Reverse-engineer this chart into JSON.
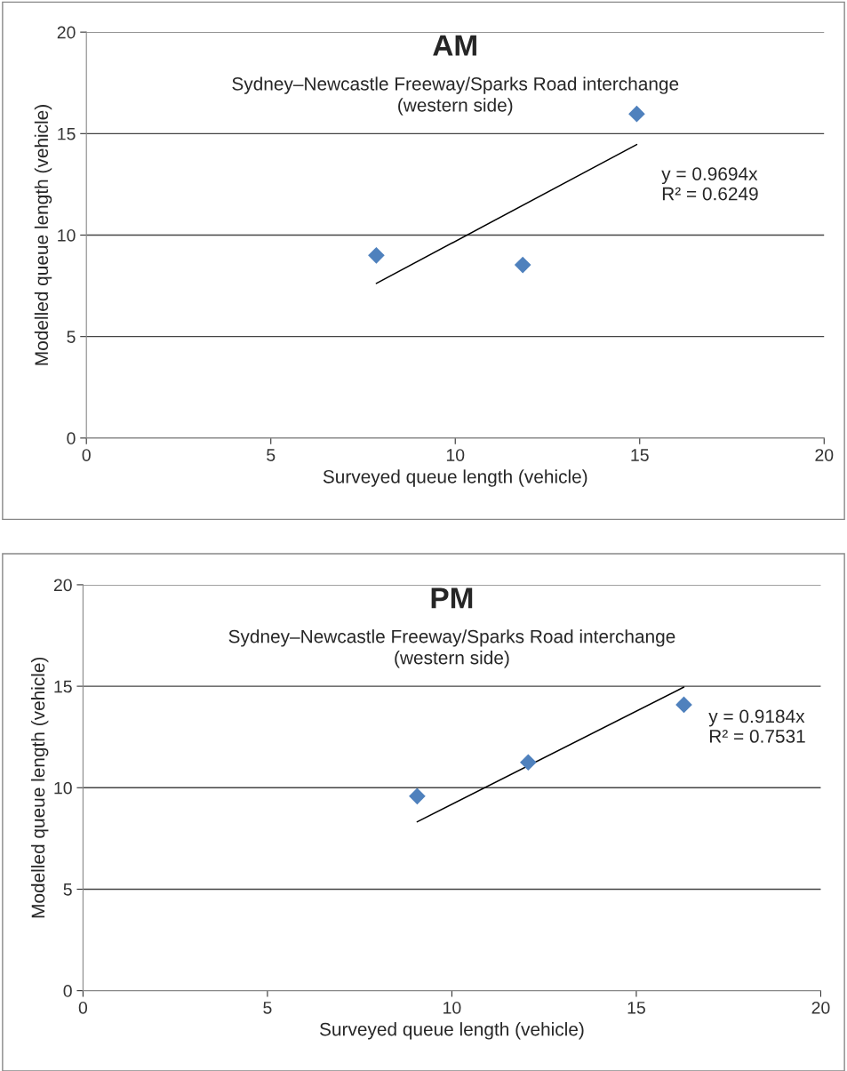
{
  "chart_data": [
    {
      "type": "scatter",
      "title": "AM",
      "subtitle": "Sydney–Newcastle Freeway/Sparks Road interchange\n(western side)",
      "xlabel": "Surveyed queue length (vehicle)",
      "ylabel": "Modelled queue length (vehicle)",
      "series": [
        {
          "color": "#4f81bd",
          "marker": "diamond",
          "x": [
            7.86,
            11.83,
            14.92
          ],
          "values": [
            9.0,
            8.53,
            15.97
          ]
        },
        {
          "type": "line",
          "color": "#000000",
          "marker": "none",
          "x": [
            7.86,
            14.92
          ],
          "values": [
            7.62,
            14.46
          ]
        }
      ],
      "annotations": [
        "y = 0.9694x\nR² = 0.6249"
      ],
      "xlim": [
        0,
        20
      ],
      "ylim": [
        0,
        20
      ],
      "xticks": [
        0,
        5,
        10,
        15,
        20
      ],
      "yticks": [
        0,
        5,
        10,
        15,
        20
      ],
      "grid": "y",
      "legend": false
    },
    {
      "type": "scatter",
      "title": "PM",
      "subtitle": "Sydney–Newcastle Freeway/Sparks Road interchange\n(western side)",
      "xlabel": "Surveyed queue length (vehicle)",
      "ylabel": "Modelled queue length (vehicle)",
      "series": [
        {
          "color": "#4f81bd",
          "marker": "diamond",
          "x": [
            9.06,
            12.07,
            16.29
          ],
          "values": [
            9.58,
            11.25,
            14.09
          ]
        },
        {
          "type": "line",
          "color": "#000000",
          "marker": "none",
          "x": [
            9.06,
            16.29
          ],
          "values": [
            8.32,
            14.96
          ]
        }
      ],
      "annotations": [
        "y = 0.9184x\nR² = 0.7531"
      ],
      "xlim": [
        0,
        20
      ],
      "ylim": [
        0,
        20
      ],
      "xticks": [
        0,
        5,
        10,
        15,
        20
      ],
      "yticks": [
        0,
        5,
        10,
        15,
        20
      ],
      "grid": "y",
      "legend": false
    }
  ]
}
